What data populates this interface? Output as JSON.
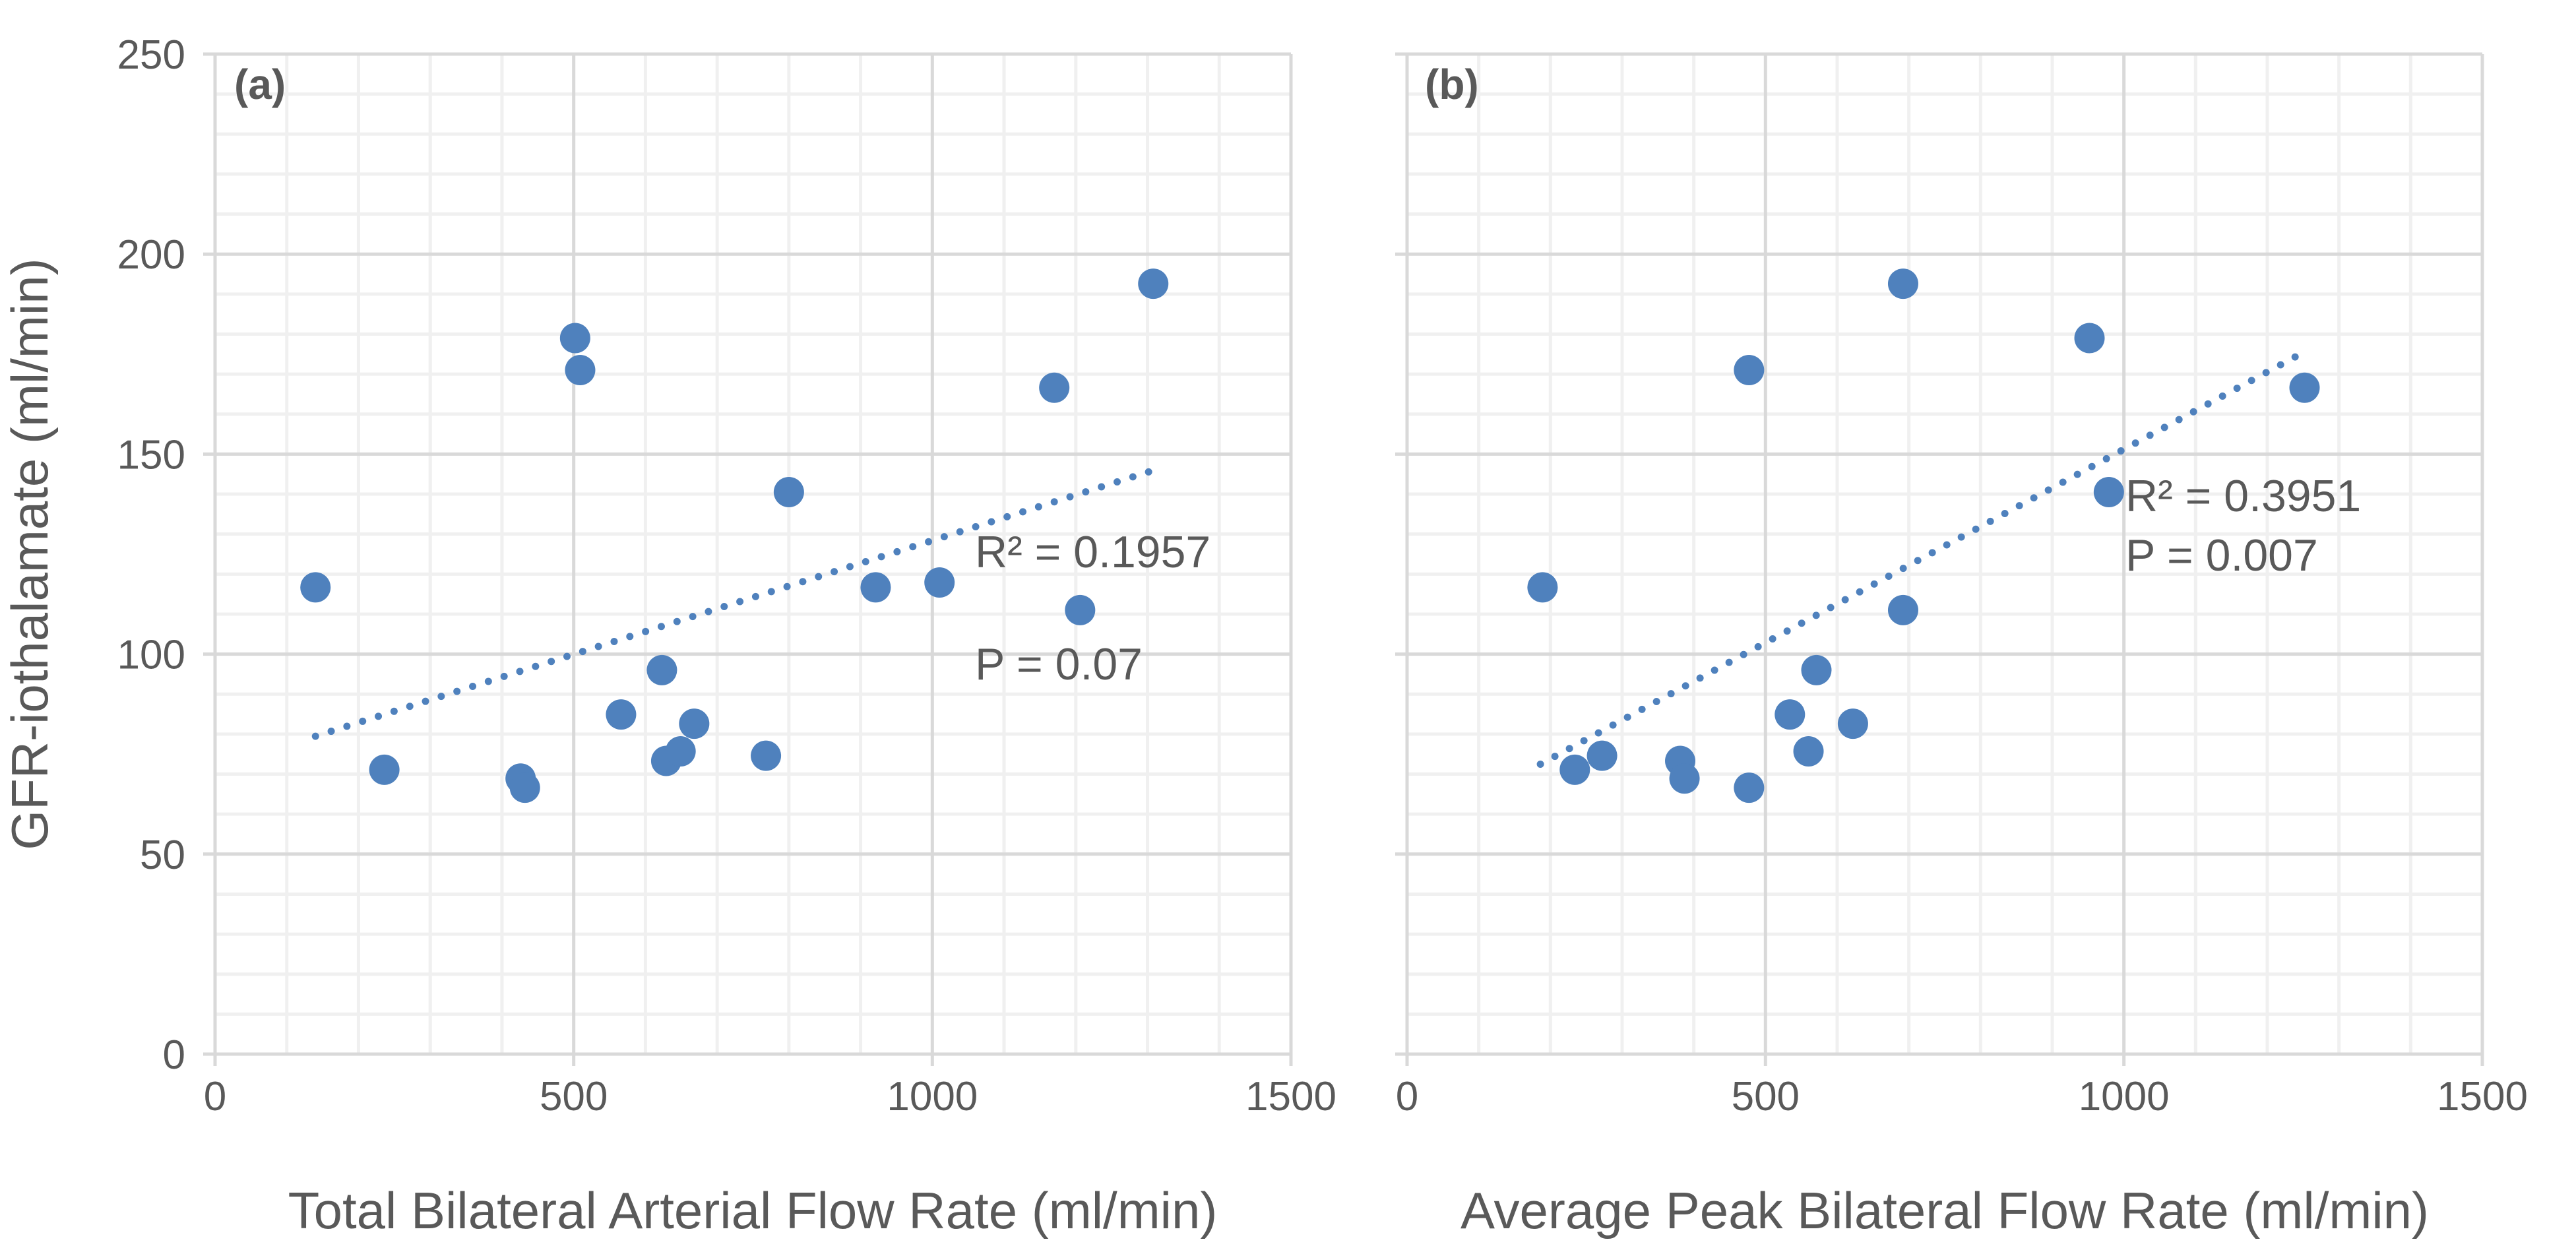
{
  "chart_data": [
    {
      "type": "scatter",
      "panel_label": "(a)",
      "xlabel": "Total Bilateral Arterial Flow Rate (ml/min)",
      "ylabel": "GFR-iothalamate (ml/min)",
      "xlim": [
        0,
        1500
      ],
      "ylim": [
        0,
        250
      ],
      "xticks": [
        "0",
        "500",
        "1000",
        "1500"
      ],
      "yticks": [
        "0",
        "50",
        "100",
        "150",
        "200",
        "250"
      ],
      "grid": true,
      "color": "#4f81bd",
      "points": [
        [
          140,
          116.7
        ],
        [
          236,
          71.1
        ],
        [
          502,
          179
        ],
        [
          509,
          171
        ],
        [
          426,
          68.9
        ],
        [
          432,
          66.6
        ],
        [
          566,
          84.9
        ],
        [
          623,
          96
        ],
        [
          629,
          73.3
        ],
        [
          649,
          75.7
        ],
        [
          668,
          82.6
        ],
        [
          768,
          74.6
        ],
        [
          800,
          140.5
        ],
        [
          921,
          116.7
        ],
        [
          1010,
          117.9
        ],
        [
          1170,
          166.6
        ],
        [
          1206,
          111
        ],
        [
          1308,
          192.6
        ]
      ],
      "trendline": {
        "type": "linear",
        "style": "dotted",
        "x_range": [
          140,
          1302
        ],
        "slope": 0.0569,
        "intercept": 71.5
      },
      "annotations": [
        "R² = 0.1957",
        "P = 0.07"
      ]
    },
    {
      "type": "scatter",
      "panel_label": "(b)",
      "xlabel": "Average Peak Bilateral Flow Rate (ml/min)",
      "xlim": [
        0,
        1500
      ],
      "ylim": [
        0,
        250
      ],
      "xticks": [
        "0",
        "500",
        "1000",
        "1500"
      ],
      "grid": true,
      "color": "#4f81bd",
      "points": [
        [
          189,
          116.7
        ],
        [
          234,
          71.1
        ],
        [
          272,
          74.6
        ],
        [
          381,
          73.3
        ],
        [
          387,
          68.9
        ],
        [
          477,
          171
        ],
        [
          477,
          66.6
        ],
        [
          534,
          84.9
        ],
        [
          560,
          75.7
        ],
        [
          571,
          96
        ],
        [
          622,
          82.6
        ],
        [
          692,
          192.6
        ],
        [
          692,
          111
        ],
        [
          952,
          179
        ],
        [
          979,
          140.5
        ],
        [
          1252,
          166.6
        ]
      ],
      "trendline": {
        "type": "linear",
        "style": "dotted",
        "x_range": [
          186,
          1239
        ],
        "slope": 0.0967,
        "intercept": 54.5
      },
      "annotations": [
        "R² = 0.3951",
        "P = 0.007"
      ]
    }
  ]
}
